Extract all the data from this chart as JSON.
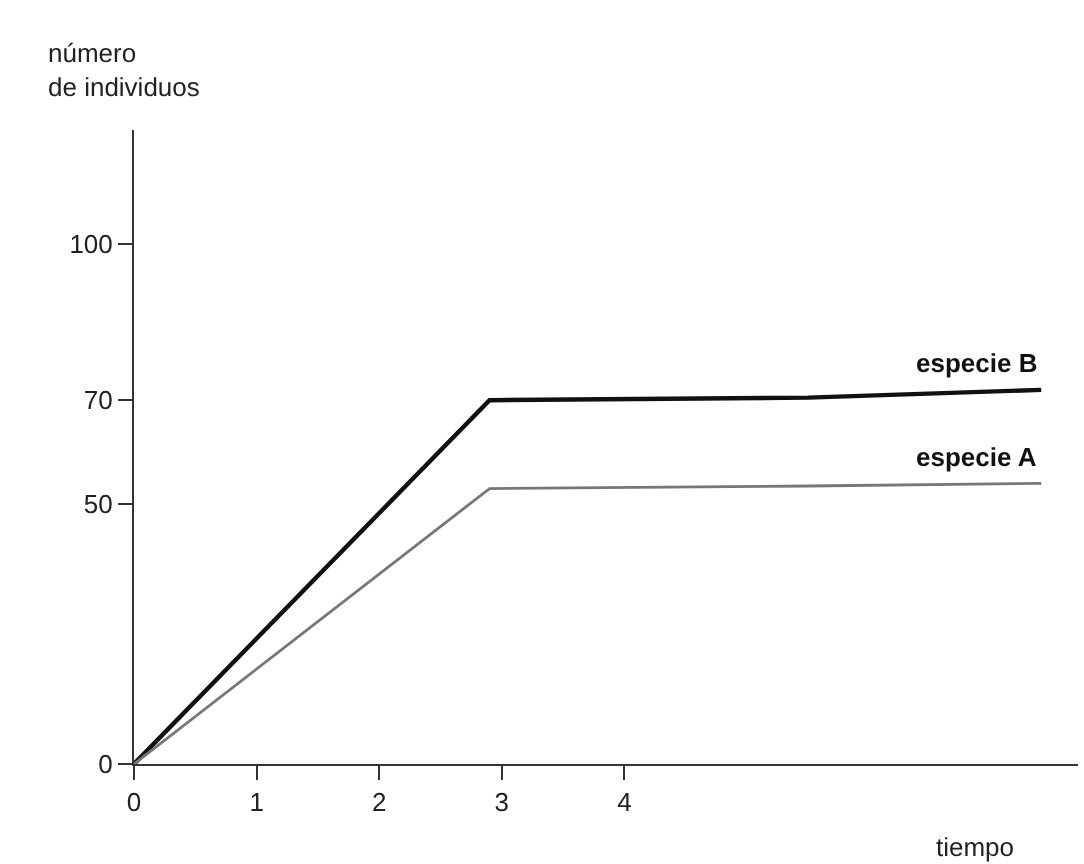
{
  "chart_data": {
    "type": "line",
    "xlabel": "tiempo",
    "ylabel": "número\nde individuos",
    "xlim": [
      0,
      7.7
    ],
    "ylim": [
      0,
      122
    ],
    "xticks": [
      0,
      1,
      2,
      3,
      4
    ],
    "yticks": [
      0,
      50,
      70,
      100
    ],
    "legend": false,
    "marker": "none",
    "line_style": "solid",
    "series": [
      {
        "name": "especie B",
        "color": "#111111",
        "x": [
          0,
          2.9,
          5.5,
          7.4
        ],
        "values": [
          0,
          70,
          70.5,
          72
        ]
      },
      {
        "name": "especie A",
        "color": "#777777",
        "x": [
          0,
          2.9,
          5.5,
          7.4
        ],
        "values": [
          0,
          53,
          53.5,
          54
        ]
      }
    ]
  }
}
